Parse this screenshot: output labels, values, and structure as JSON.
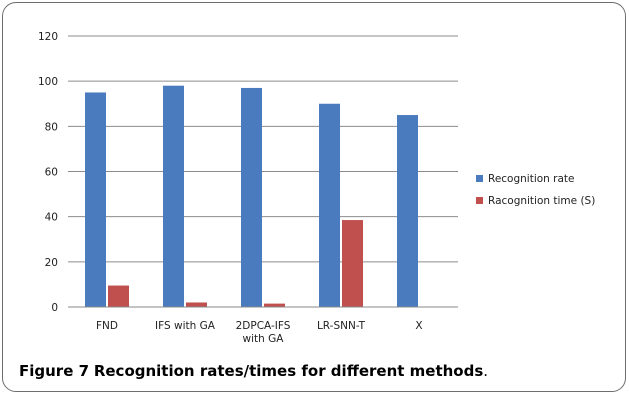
{
  "chart_data": {
    "type": "bar",
    "title": "",
    "xlabel": "",
    "ylabel": "",
    "categories": [
      [
        "FND"
      ],
      [
        "IFS with GA"
      ],
      [
        "2DPCA-IFS",
        "with GA"
      ],
      [
        "LR-SNN-T"
      ],
      [
        "X"
      ]
    ],
    "series": [
      {
        "name": "Recognition rate",
        "color": "#4a7bbf",
        "values": [
          95,
          98,
          97,
          90,
          85
        ]
      },
      {
        "name": "Racognition time (S)",
        "color": "#c0504d",
        "values": [
          9.5,
          2,
          1.5,
          38.5,
          0
        ]
      }
    ],
    "ylim": [
      0,
      120
    ],
    "yticks": [
      0,
      20,
      40,
      60,
      80,
      100,
      120
    ],
    "grid": true,
    "legend_position": "right"
  },
  "caption": {
    "label": "Figure 7",
    "text": "Recognition rates/times for different methods",
    "period": "."
  }
}
